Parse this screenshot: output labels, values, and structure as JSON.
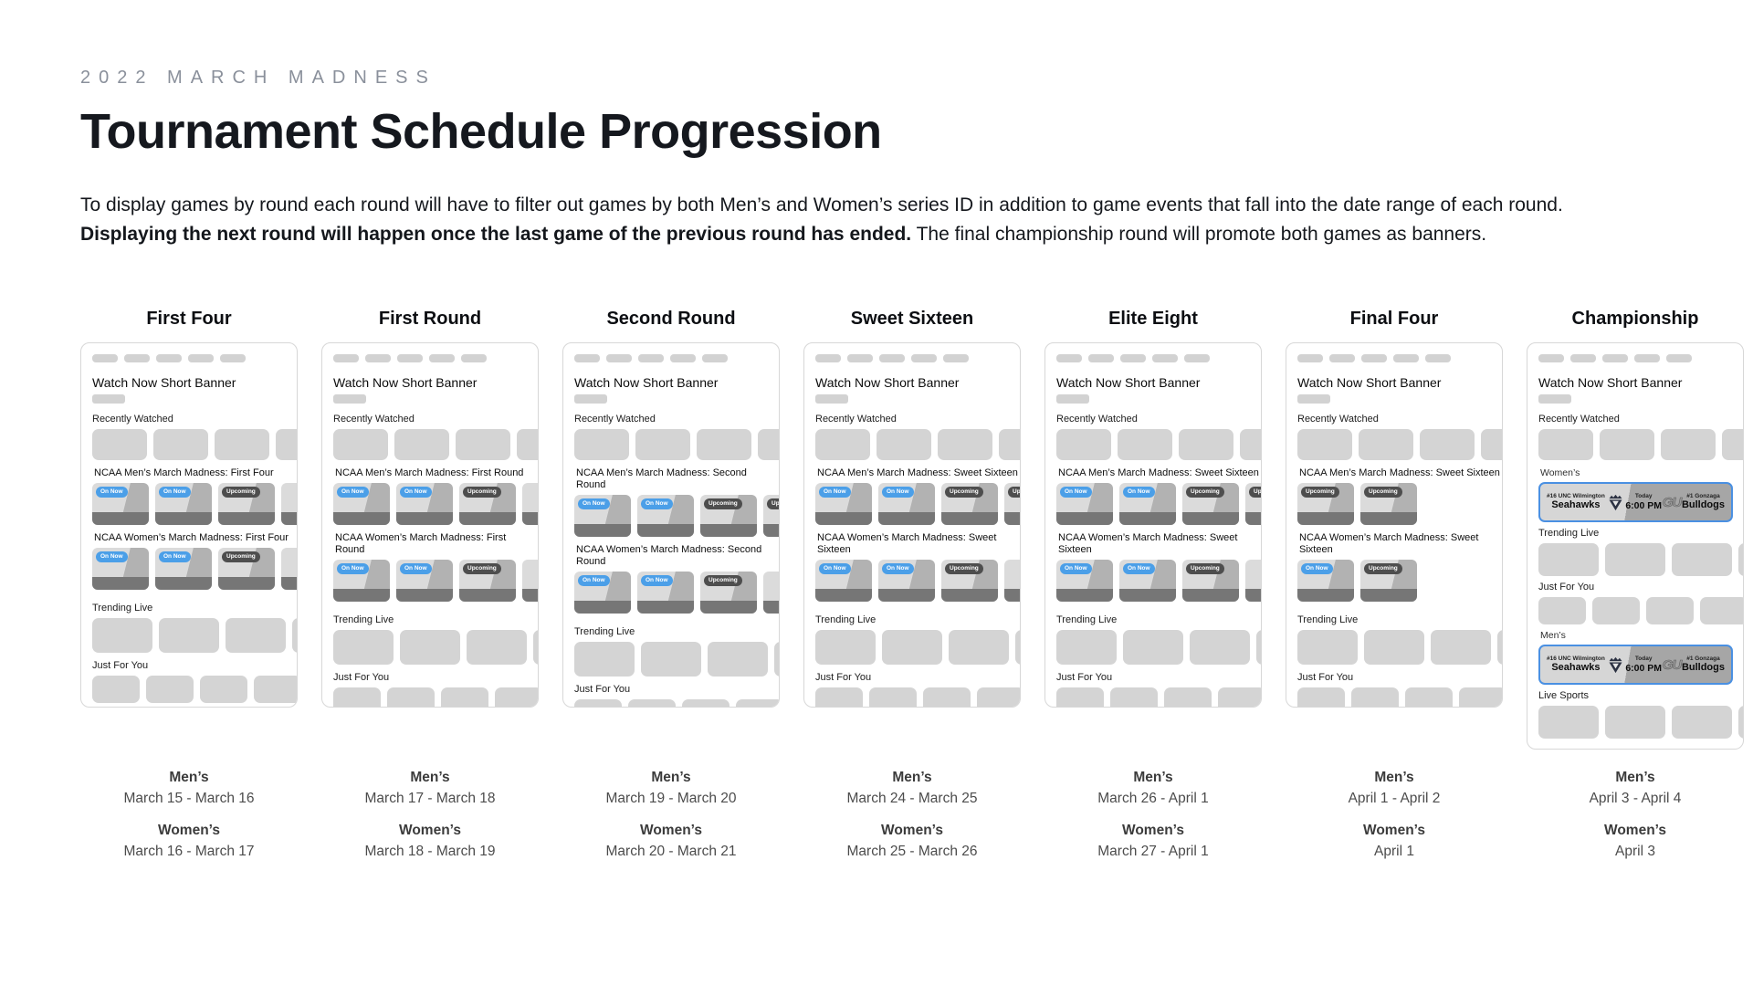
{
  "header": {
    "eyebrow": "2022 MARCH MADNESS",
    "title": "Tournament Schedule Progression",
    "intro_1": "To display games by round each round will have to filter out games by both Men’s and Women’s series ID in addition to game events that fall into the date range of each round. ",
    "intro_bold": "Displaying the next round will happen once the last game of the previous round has ended.",
    "intro_2": " The final championship round will promote both games as banners."
  },
  "labels": {
    "mens": "Men’s",
    "womens": "Women’s",
    "watch_now_banner": "Watch Now Short Banner",
    "recently_watched": "Recently Watched",
    "trending_live": "Trending Live",
    "just_for_you": "Just For You",
    "live_sports": "Live Sports",
    "badge_on_now": "On Now",
    "badge_upcoming": "Upcoming"
  },
  "championship_banner": {
    "away_rank_team": "#16 UNC Wilmington",
    "away_nickname": "Seahawks",
    "day": "Today",
    "time": "6:00 PM",
    "home_logo_text": "GU",
    "home_rank_team": "#1 Gonzaga",
    "home_nickname": "Bulldogs"
  },
  "colors": {
    "on_now_badge_blue": "#4B9FE8",
    "upcoming_badge_gray": "#4E4E4E",
    "banner_border_blue": "#4A90E2",
    "placeholder_gray": "#D4D4D4",
    "eyebrow_gray": "#8A909B"
  },
  "columns": [
    {
      "title": "First Four",
      "type": "standard",
      "mens_section": "NCAA Men’s March Madness: First Four",
      "womens_section": "NCAA Women’s March Madness: First Four",
      "mens_games": [
        "on-now",
        "on-now",
        "upcoming",
        "cut"
      ],
      "womens_games": [
        "on-now",
        "on-now",
        "upcoming",
        "cut"
      ],
      "mens_dates": "March 15 - March 16",
      "womens_dates": "March 16 - March 17"
    },
    {
      "title": "First Round",
      "type": "standard",
      "mens_section": "NCAA Men’s March Madness: First Round",
      "womens_section": "NCAA Women’s March Madness: First Round",
      "mens_games": [
        "on-now",
        "on-now",
        "upcoming",
        "cut"
      ],
      "womens_games": [
        "on-now",
        "on-now",
        "upcoming",
        "cut"
      ],
      "mens_dates": "March 17 - March 18",
      "womens_dates": "March 18 - March 19"
    },
    {
      "title": "Second Round",
      "type": "standard",
      "mens_section": "NCAA Men’s March Madness: Second Round",
      "womens_section": "NCAA Women’s March Madness: Second Round",
      "mens_games": [
        "on-now",
        "on-now",
        "upcoming",
        "cut-upcoming"
      ],
      "womens_games": [
        "on-now",
        "on-now",
        "upcoming",
        "cut"
      ],
      "mens_dates": "March 19 - March 20",
      "womens_dates": "March 20 - March 21"
    },
    {
      "title": "Sweet Sixteen",
      "type": "standard",
      "mens_section": "NCAA Men’s March Madness: Sweet Sixteen",
      "womens_section": "NCAA Women’s March Madness: Sweet Sixteen",
      "mens_games": [
        "on-now",
        "on-now",
        "upcoming",
        "cut-upcoming"
      ],
      "womens_games": [
        "on-now",
        "on-now",
        "upcoming",
        "cut"
      ],
      "mens_dates": "March 24 - March 25",
      "womens_dates": "March 25 - March 26"
    },
    {
      "title": "Elite Eight",
      "type": "standard",
      "mens_section": "NCAA Men’s March Madness: Sweet Sixteen",
      "womens_section": "NCAA Women’s March Madness: Sweet Sixteen",
      "mens_games": [
        "on-now",
        "on-now",
        "upcoming",
        "cut-upcoming"
      ],
      "womens_games": [
        "on-now",
        "on-now",
        "upcoming",
        "cut"
      ],
      "mens_dates": "March 26 - April 1",
      "womens_dates": "March 27 - April 1"
    },
    {
      "title": "Final Four",
      "type": "standard",
      "mens_section": "NCAA Men’s March Madness: Sweet Sixteen",
      "womens_section": "NCAA Women’s March Madness: Sweet Sixteen",
      "mens_games": [
        "upcoming",
        "upcoming"
      ],
      "womens_games": [
        "on-now",
        "upcoming"
      ],
      "mens_dates": "April 1 - April 2",
      "womens_dates": "April 1"
    },
    {
      "title": "Championship",
      "type": "championship",
      "mens_dates": "April 3 - April 4",
      "womens_dates": "April 3"
    }
  ]
}
